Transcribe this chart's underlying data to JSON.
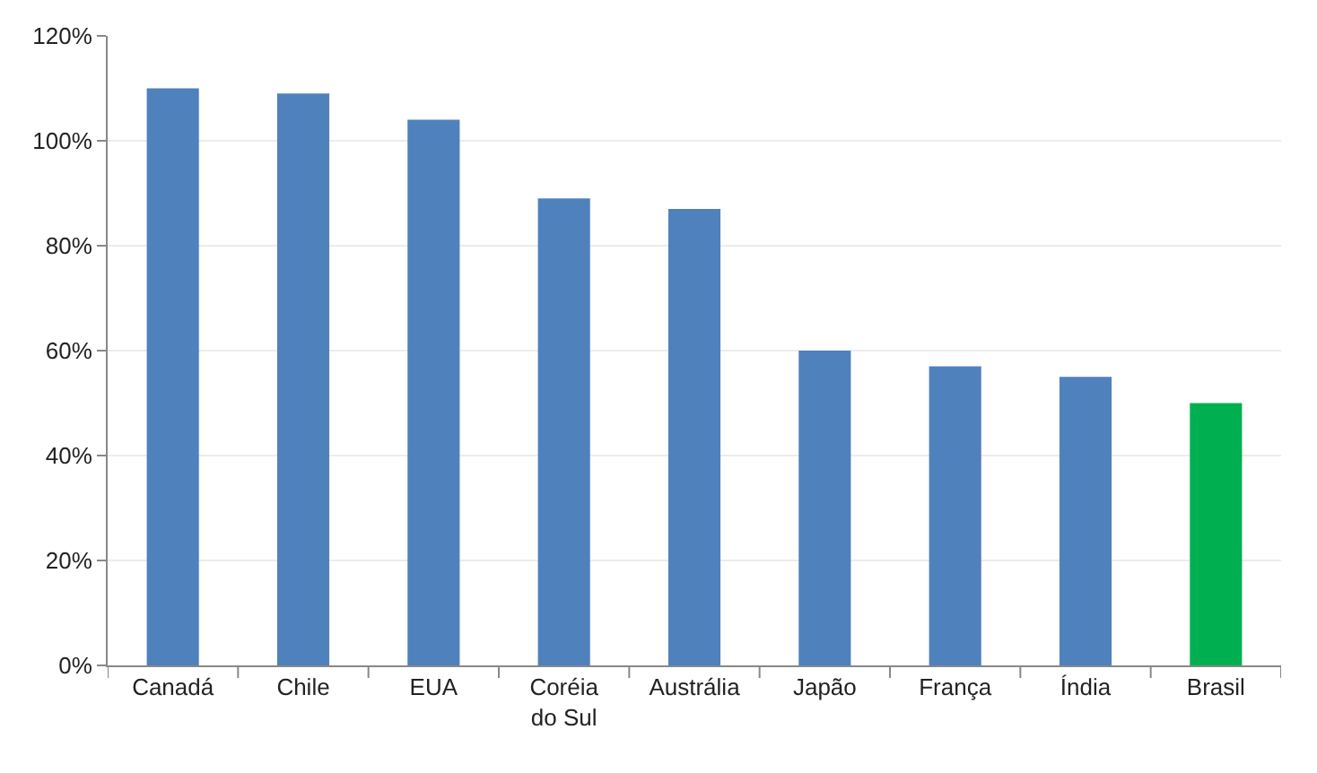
{
  "chart_data": {
    "type": "bar",
    "categories": [
      "Canadá",
      "Chile",
      "EUA",
      "Coréia\ndo Sul",
      "Austrália",
      "Japão",
      "França",
      "Índia",
      "Brasil"
    ],
    "values": [
      110,
      109,
      104,
      89,
      87,
      60,
      57,
      55,
      50
    ],
    "colors": [
      "#4f81bd",
      "#4f81bd",
      "#4f81bd",
      "#4f81bd",
      "#4f81bd",
      "#4f81bd",
      "#4f81bd",
      "#4f81bd",
      "#00b050"
    ],
    "ylim": [
      0,
      120
    ],
    "yticks": [
      {
        "value": 0,
        "label": "0%"
      },
      {
        "value": 20,
        "label": "20%"
      },
      {
        "value": 40,
        "label": "40%"
      },
      {
        "value": 60,
        "label": "60%"
      },
      {
        "value": 80,
        "label": "80%"
      },
      {
        "value": 100,
        "label": "100%"
      },
      {
        "value": 120,
        "label": "120%"
      }
    ],
    "grid": "y"
  }
}
